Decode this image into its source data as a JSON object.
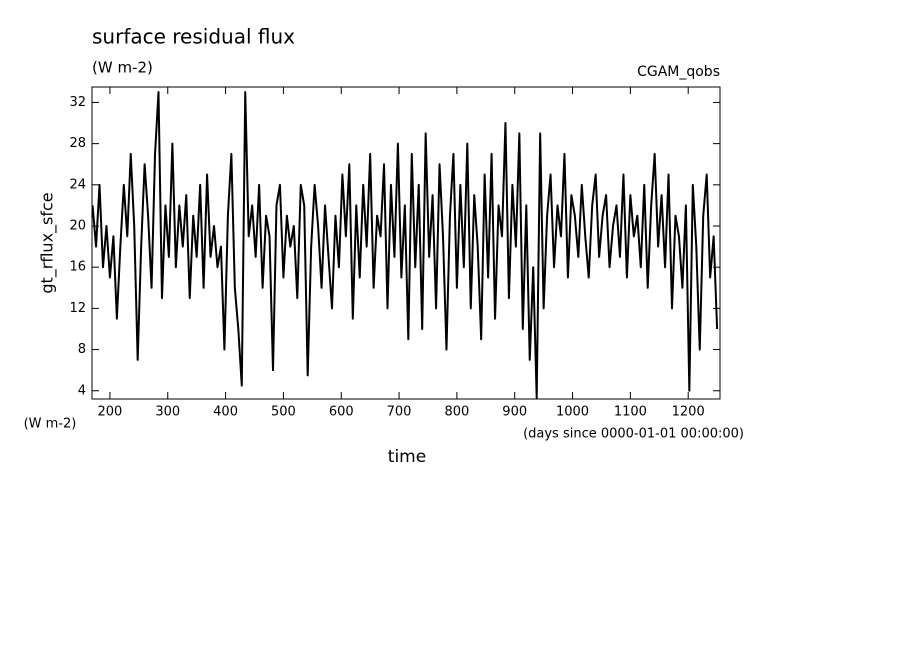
{
  "chart_data": {
    "type": "line",
    "title": "surface residual flux",
    "subtitle": "(W m-2)",
    "annotation": "CGAM_qobs",
    "y_label": "gt_rflux_sfce",
    "y_unit": "(W m-2)",
    "x_label": "time",
    "x_unit": "(days since 0000-01-01 00:00:00)",
    "color": "#000000",
    "xlim": [
      169,
      1255
    ],
    "ylim": [
      3.2,
      33.5
    ],
    "xticks": [
      200,
      300,
      400,
      500,
      600,
      700,
      800,
      900,
      1000,
      1100,
      1200
    ],
    "yticks": [
      4,
      8,
      12,
      16,
      20,
      24,
      28,
      32
    ],
    "x": [
      170,
      176,
      182,
      188,
      194,
      200,
      206,
      212,
      218,
      224,
      230,
      236,
      242,
      248,
      254,
      260,
      266,
      272,
      278,
      284,
      290,
      296,
      302,
      308,
      314,
      320,
      326,
      332,
      338,
      344,
      350,
      356,
      362,
      368,
      374,
      380,
      386,
      392,
      398,
      404,
      410,
      416,
      422,
      428,
      434,
      440,
      446,
      452,
      458,
      464,
      470,
      476,
      482,
      488,
      494,
      500,
      506,
      512,
      518,
      524,
      530,
      536,
      542,
      548,
      554,
      560,
      566,
      572,
      578,
      584,
      590,
      596,
      602,
      608,
      614,
      620,
      626,
      632,
      638,
      644,
      650,
      656,
      662,
      668,
      674,
      680,
      686,
      692,
      698,
      704,
      710,
      716,
      722,
      728,
      734,
      740,
      746,
      752,
      758,
      764,
      770,
      776,
      782,
      788,
      794,
      800,
      806,
      812,
      818,
      824,
      830,
      836,
      842,
      848,
      854,
      860,
      866,
      872,
      878,
      884,
      890,
      896,
      902,
      908,
      914,
      920,
      926,
      932,
      938,
      944,
      950,
      956,
      962,
      968,
      974,
      980,
      986,
      992,
      998,
      1004,
      1010,
      1016,
      1022,
      1028,
      1034,
      1040,
      1046,
      1052,
      1058,
      1064,
      1070,
      1076,
      1082,
      1088,
      1094,
      1100,
      1106,
      1112,
      1118,
      1124,
      1130,
      1136,
      1142,
      1148,
      1154,
      1160,
      1166,
      1172,
      1178,
      1184,
      1190,
      1196,
      1202,
      1208,
      1214,
      1220,
      1226,
      1232,
      1238,
      1244,
      1250
    ],
    "values": [
      22,
      18,
      24,
      16,
      20,
      15,
      19,
      11,
      18,
      24,
      19,
      27,
      20,
      7,
      18,
      26,
      21,
      14,
      27,
      33,
      13,
      22,
      17,
      28,
      16,
      22,
      18,
      23,
      13,
      21,
      17,
      24,
      14,
      25,
      17,
      20,
      16,
      18,
      8,
      21,
      27,
      14,
      10,
      4.5,
      33,
      19,
      22,
      17,
      24,
      14,
      21,
      19,
      6,
      22,
      24,
      15,
      21,
      18,
      20,
      13,
      24,
      22,
      5.5,
      18,
      24,
      20,
      14,
      22,
      17,
      12,
      21,
      16,
      25,
      19,
      26,
      11,
      22,
      15,
      24,
      18,
      27,
      14,
      21,
      19,
      26,
      12,
      24,
      17,
      28,
      15,
      22,
      9,
      27,
      16,
      24,
      10,
      29,
      17,
      23,
      12,
      26,
      19,
      8,
      21,
      27,
      14,
      24,
      16,
      28,
      12,
      23,
      18,
      9,
      25,
      15,
      27,
      11,
      22,
      19,
      30,
      13,
      24,
      18,
      29,
      10,
      22,
      7,
      16,
      3.3,
      29,
      12,
      21,
      25,
      16,
      22,
      19,
      27,
      15,
      23,
      21,
      17,
      24,
      19,
      15,
      22,
      25,
      17,
      21,
      23,
      16,
      20,
      22,
      17,
      25,
      15,
      23,
      19,
      21,
      16,
      24,
      14,
      22,
      27,
      18,
      23,
      16,
      25,
      12,
      21,
      19,
      14,
      22,
      4,
      24,
      18,
      8,
      21,
      25,
      15,
      19,
      10
    ]
  }
}
